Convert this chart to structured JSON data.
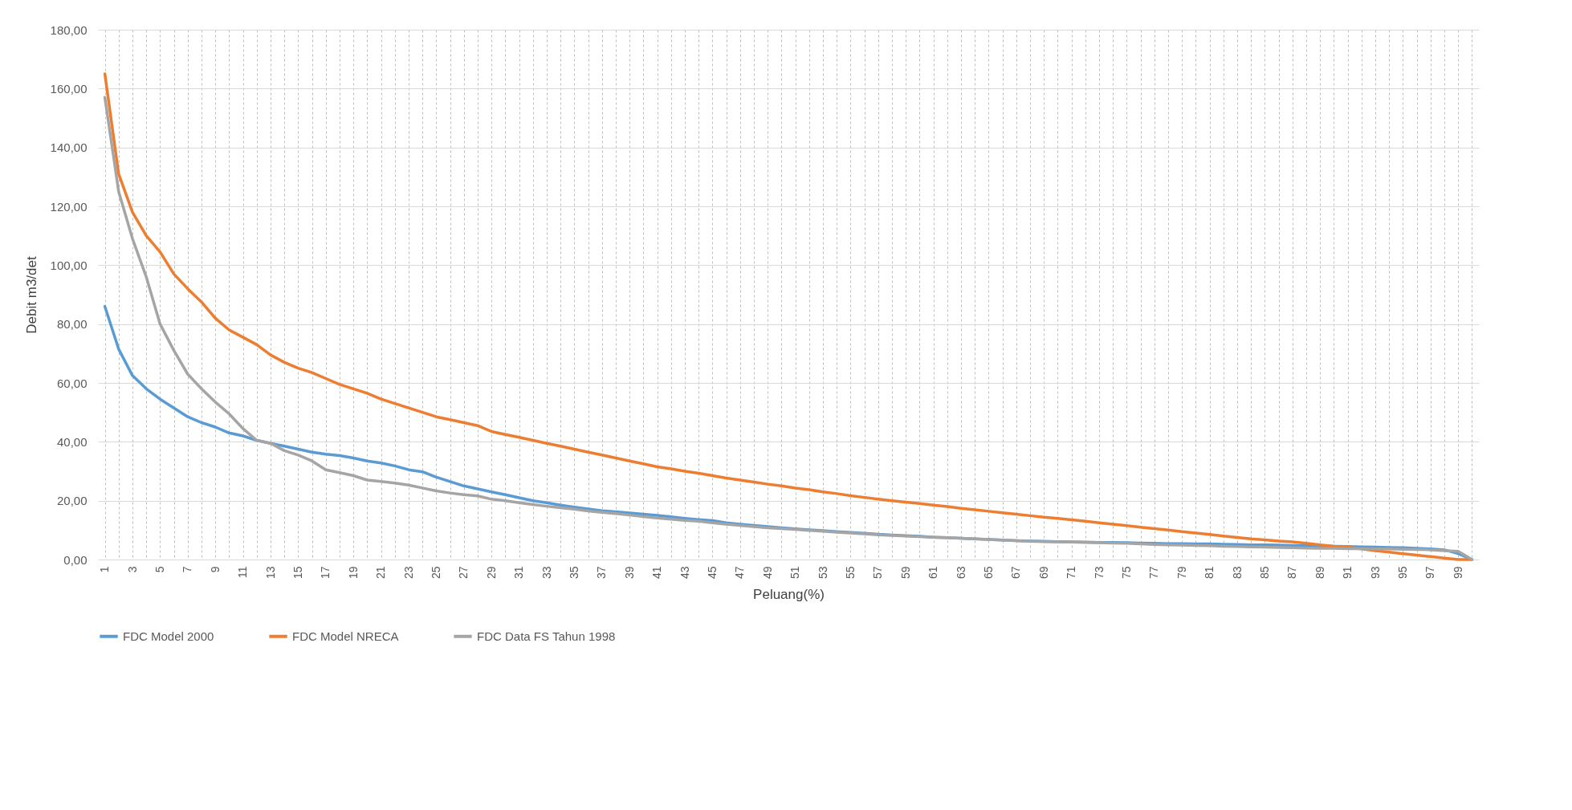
{
  "chart_data": {
    "type": "line",
    "xlabel": "Peluang(%)",
    "ylabel": "Debit m3/det",
    "categories": [
      "1",
      null,
      "3",
      null,
      "5",
      null,
      "7",
      null,
      "9",
      null,
      "11",
      null,
      "13",
      null,
      "15",
      null,
      "17",
      null,
      "19",
      null,
      "21",
      null,
      "23",
      null,
      "25",
      null,
      "27",
      null,
      "29",
      null,
      "31",
      null,
      "33",
      null,
      "35",
      null,
      "37",
      null,
      "39",
      null,
      "41",
      null,
      "43",
      null,
      "45",
      null,
      "47",
      null,
      "49",
      null,
      "51",
      null,
      "53",
      null,
      "55",
      null,
      "57",
      null,
      "59",
      null,
      "61",
      null,
      "63",
      null,
      "65",
      null,
      "67",
      null,
      "69",
      null,
      "71",
      null,
      "73",
      null,
      "75",
      null,
      "77",
      null,
      "79",
      null,
      "81",
      null,
      "83",
      null,
      "85",
      null,
      "87",
      null,
      "89",
      null,
      "91",
      null,
      "93",
      null,
      "95",
      null,
      "97",
      null,
      "99",
      null
    ],
    "series": [
      {
        "name": "FDC Model 2000",
        "color": "#5b9bd5",
        "values": [
          86,
          71.5,
          62.5,
          58,
          54.5,
          51.5,
          48.5,
          46.5,
          45,
          43,
          42,
          40.5,
          39.5,
          38.5,
          37.5,
          36.5,
          35.8,
          35.3,
          34.5,
          33.5,
          32.8,
          31.8,
          30.5,
          29.8,
          28,
          26.5,
          25,
          24,
          23,
          22,
          21,
          20,
          19.3,
          18.5,
          17.8,
          17.2,
          16.6,
          16.2,
          15.8,
          15.4,
          15,
          14.5,
          14,
          13.6,
          13.2,
          12.5,
          12,
          11.6,
          11.2,
          10.8,
          10.4,
          10.1,
          9.8,
          9.5,
          9.2,
          8.9,
          8.6,
          8.3,
          8.1,
          7.9,
          7.6,
          7.4,
          7.2,
          7,
          6.8,
          6.6,
          6.4,
          6.3,
          6.2,
          6.1,
          6,
          5.9,
          5.8,
          5.8,
          5.7,
          5.6,
          5.5,
          5.4,
          5.4,
          5.3,
          5.3,
          5.2,
          5.1,
          5,
          5,
          4.9,
          4.8,
          4.7,
          4.6,
          4.5,
          4.4,
          4.3,
          4.2,
          4.1,
          4,
          3.8,
          3.6,
          3.3,
          2,
          0
        ]
      },
      {
        "name": "FDC Model NRECA",
        "color": "#ed7d31",
        "values": [
          165,
          131,
          118,
          110,
          104.5,
          97,
          92,
          87.5,
          82,
          78,
          75.5,
          73,
          69.5,
          67,
          65,
          63.5,
          61.5,
          59.5,
          58,
          56.5,
          54.5,
          53,
          51.5,
          50,
          48.5,
          47.5,
          46.5,
          45.5,
          43.5,
          42.5,
          41.5,
          40.5,
          39.5,
          38.5,
          37.5,
          36.5,
          35.5,
          34.5,
          33.5,
          32.5,
          31.5,
          30.8,
          30,
          29.3,
          28.5,
          27.7,
          27,
          26.3,
          25.6,
          25,
          24.3,
          23.7,
          23,
          22.4,
          21.7,
          21.1,
          20.5,
          20,
          19.5,
          19,
          18.5,
          18,
          17.4,
          16.9,
          16.4,
          15.9,
          15.4,
          14.9,
          14.4,
          14,
          13.5,
          13,
          12.5,
          12,
          11.5,
          11,
          10.5,
          10,
          9.5,
          9,
          8.5,
          8,
          7.5,
          7,
          6.7,
          6.3,
          6,
          5.5,
          5,
          4.5,
          4.2,
          3.6,
          3,
          2.5,
          2,
          1.5,
          1,
          0.5,
          0,
          0
        ]
      },
      {
        "name": "FDC Data FS Tahun 1998",
        "color": "#a5a5a5",
        "values": [
          157,
          125,
          109,
          96,
          80,
          71,
          63,
          58,
          53.5,
          49.5,
          44.5,
          40.5,
          39.5,
          37,
          35.5,
          33.5,
          30.5,
          29.5,
          28.5,
          27,
          26.5,
          26,
          25.3,
          24.3,
          23.3,
          22.6,
          22,
          21.6,
          20.5,
          20,
          19.3,
          18.7,
          18.1,
          17.6,
          17.1,
          16.5,
          16,
          15.6,
          15.1,
          14.6,
          14.1,
          13.7,
          13.3,
          13,
          12.5,
          12,
          11.6,
          11.2,
          10.8,
          10.5,
          10.2,
          9.9,
          9.6,
          9.3,
          9,
          8.7,
          8.4,
          8.2,
          8,
          7.8,
          7.6,
          7.4,
          7.2,
          7,
          6.8,
          6.6,
          6.4,
          6.2,
          6.1,
          6,
          5.9,
          5.8,
          5.7,
          5.6,
          5.5,
          5.3,
          5.1,
          5,
          4.9,
          4.8,
          4.7,
          4.5,
          4.4,
          4.3,
          4.2,
          4.1,
          4,
          3.9,
          3.8,
          3.8,
          3.7,
          3.7,
          3.6,
          3.6,
          3.5,
          3.4,
          3.3,
          3,
          2.8,
          0
        ]
      }
    ],
    "ylim": [
      0,
      180
    ],
    "yticks": [
      {
        "value": 0,
        "label": "0,00"
      },
      {
        "value": 20,
        "label": "20,00"
      },
      {
        "value": 40,
        "label": "40,00"
      },
      {
        "value": 60,
        "label": "60,00"
      },
      {
        "value": 80,
        "label": "80,00"
      },
      {
        "value": 100,
        "label": "100,00"
      },
      {
        "value": 120,
        "label": "120,00"
      },
      {
        "value": 140,
        "label": "140,00"
      },
      {
        "value": 160,
        "label": "160,00"
      },
      {
        "value": 180,
        "label": "180,00"
      }
    ],
    "grid": true,
    "legend": "bottom"
  }
}
